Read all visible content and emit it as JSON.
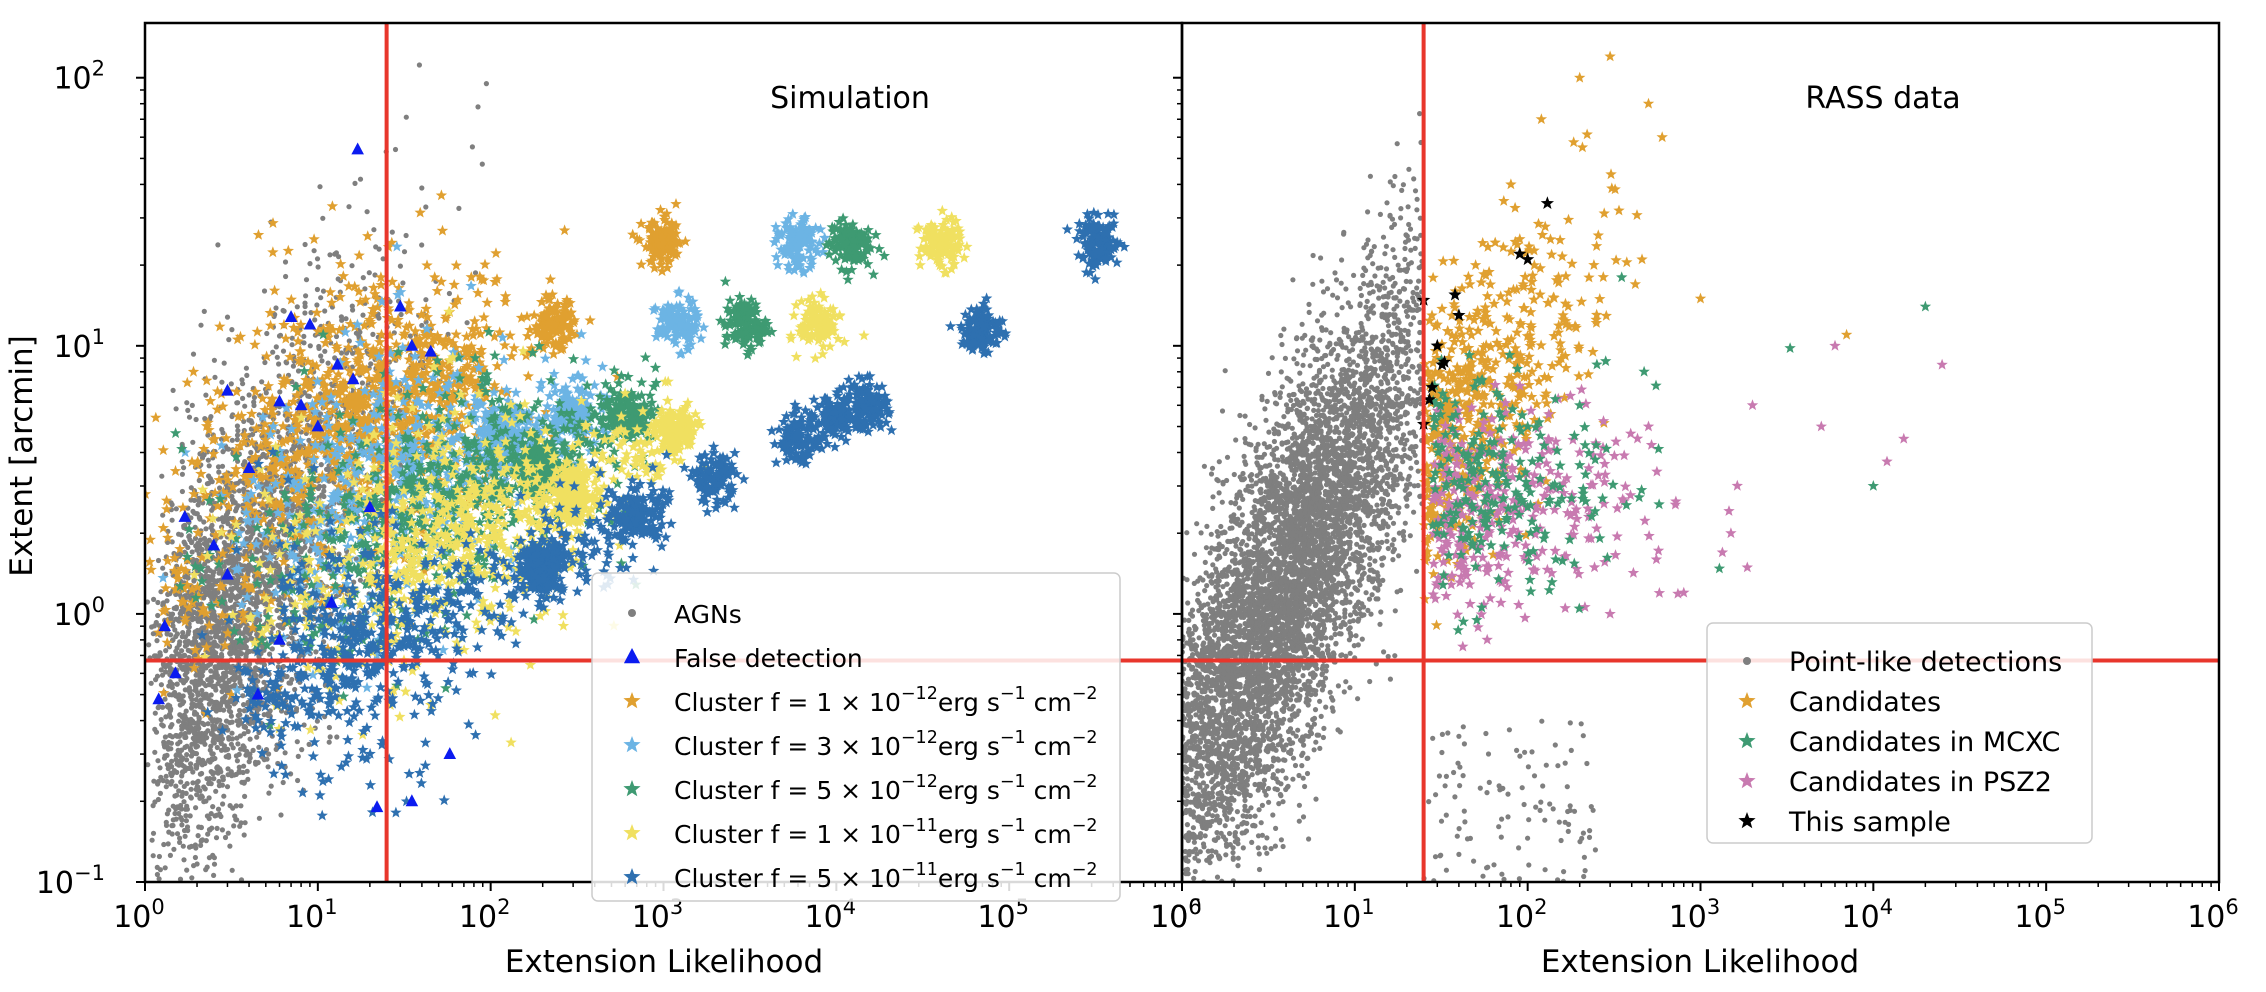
{
  "figure": {
    "ylabel": "Extent [arcmin]",
    "cut_lines": {
      "extension_likelihood": 25,
      "extent_arcmin": 0.67,
      "color": "#e8362c"
    }
  },
  "chart_data": [
    {
      "type": "scatter",
      "title": "Simulation",
      "xlabel": "Extension Likelihood",
      "ylabel": "Extent [arcmin]",
      "xscale": "log",
      "yscale": "log",
      "xlim": [
        1,
        1000000
      ],
      "ylim": [
        0.1,
        160
      ],
      "x_ticks": [
        1,
        10,
        100,
        1000,
        10000,
        100000,
        1000000
      ],
      "x_tick_labels": [
        "10^0",
        "10^1",
        "10^2",
        "10^3",
        "10^4",
        "10^5",
        "10^6"
      ],
      "y_ticks": [
        0.1,
        1,
        10,
        100
      ],
      "y_tick_labels": [
        "10^-1",
        "10^0",
        "10^1",
        "10^2"
      ],
      "grid": false,
      "legend_position": "lower-right",
      "series": [
        {
          "name": "AGNs",
          "marker": "circle",
          "color": "#7f7f7f",
          "description_points": [
            [
              1.2,
              0.4
            ],
            [
              1.5,
              0.7
            ],
            [
              2,
              1.2
            ],
            [
              3,
              2
            ],
            [
              4,
              3
            ],
            [
              6,
              5
            ],
            [
              8,
              8
            ],
            [
              10,
              12
            ],
            [
              15,
              20
            ],
            [
              20,
              40
            ],
            [
              30,
              70
            ],
            [
              50,
              140
            ],
            [
              2,
              0.15
            ],
            [
              5,
              0.2
            ],
            [
              10,
              0.3
            ],
            [
              40,
              0.15
            ],
            [
              100,
              0.12
            ],
            [
              20,
              1
            ],
            [
              15,
              0.5
            ]
          ]
        },
        {
          "name": "False detection",
          "marker": "triangle",
          "color": "#0b1bf0",
          "points": [
            [
              17,
              54
            ],
            [
              7,
              12.8
            ],
            [
              9,
              12
            ],
            [
              30,
              14
            ],
            [
              35,
              10
            ],
            [
              45,
              9.5
            ],
            [
              3,
              6.8
            ],
            [
              6,
              6.2
            ],
            [
              8,
              6
            ],
            [
              13,
              8.5
            ],
            [
              16,
              7.5
            ],
            [
              10,
              5
            ],
            [
              4,
              3.5
            ],
            [
              2.5,
              1.8
            ],
            [
              1.7,
              2.3
            ],
            [
              3,
              1.4
            ],
            [
              1.3,
              0.9
            ],
            [
              1.5,
              0.6
            ],
            [
              1.2,
              0.48
            ],
            [
              4.5,
              0.5
            ],
            [
              6,
              0.8
            ],
            [
              22,
              0.19
            ],
            [
              35,
              0.2
            ],
            [
              58,
              0.3
            ],
            [
              12,
              1.1
            ],
            [
              20,
              2.5
            ]
          ]
        },
        {
          "name": "Cluster f = 1×10^-12 erg s^-1 cm^-2",
          "marker": "star",
          "color": "#e0a030",
          "centers": [
            [
              15,
              5
            ],
            [
              30,
              6.5
            ],
            [
              60,
              8
            ],
            [
              230,
              12
            ],
            [
              1000,
              24
            ],
            [
              5,
              3
            ],
            [
              2,
              1.5
            ]
          ]
        },
        {
          "name": "Cluster f = 3×10^-12 erg s^-1 cm^-2",
          "marker": "star",
          "color": "#6cb4e4",
          "centers": [
            [
              40,
              3.5
            ],
            [
              120,
              4.5
            ],
            [
              300,
              5.5
            ],
            [
              1200,
              12
            ],
            [
              6000,
              24
            ],
            [
              10,
              2
            ]
          ]
        },
        {
          "name": "Cluster f = 5×10^-12 erg s^-1 cm^-2",
          "marker": "star",
          "color": "#3e9a72",
          "centers": [
            [
              60,
              2.8
            ],
            [
              200,
              3.5
            ],
            [
              600,
              5.5
            ],
            [
              3000,
              12
            ],
            [
              12000,
              24
            ],
            [
              8,
              1.4
            ]
          ]
        },
        {
          "name": "Cluster f = 1×10^-11 erg s^-1 cm^-2",
          "marker": "star",
          "color": "#f0e060",
          "centers": [
            [
              80,
              2
            ],
            [
              300,
              2.8
            ],
            [
              1200,
              4.8
            ],
            [
              8000,
              12
            ],
            [
              40000,
              24
            ],
            [
              12,
              1.3
            ]
          ]
        },
        {
          "name": "Cluster f = 5×10^-11 erg s^-1 cm^-2",
          "marker": "star",
          "color": "#2e70b0",
          "centers": [
            [
              15,
              0.7
            ],
            [
              200,
              1.5
            ],
            [
              700,
              2.3
            ],
            [
              2000,
              3.2
            ],
            [
              6000,
              4.5
            ],
            [
              10000,
              5.3
            ],
            [
              15000,
              6
            ],
            [
              70000,
              11.5
            ],
            [
              330000,
              24
            ]
          ]
        }
      ]
    },
    {
      "type": "scatter",
      "title": "RASS data",
      "xlabel": "Extension Likelihood",
      "xscale": "log",
      "yscale": "log",
      "xlim": [
        1,
        1000000
      ],
      "ylim": [
        0.1,
        160
      ],
      "x_ticks": [
        1,
        10,
        100,
        1000,
        10000,
        100000,
        1000000
      ],
      "x_tick_labels": [
        "10^0",
        "10^1",
        "10^2",
        "10^3",
        "10^4",
        "10^5",
        "10^6"
      ],
      "grid": false,
      "legend_position": "lower-right",
      "series": [
        {
          "name": "Point-like detections",
          "marker": "circle",
          "color": "#7f7f7f",
          "description_points": [
            [
              1.2,
              0.8
            ],
            [
              2,
              1.2
            ],
            [
              4,
              2
            ],
            [
              8,
              4
            ],
            [
              15,
              8
            ],
            [
              20,
              20
            ],
            [
              25,
              40
            ],
            [
              18,
              70
            ],
            [
              1.5,
              0.3
            ],
            [
              3,
              0.2
            ],
            [
              30,
              0.15
            ],
            [
              60,
              0.3
            ],
            [
              120,
              0.5
            ]
          ]
        },
        {
          "name": "Candidates",
          "marker": "star",
          "color": "#e0a030",
          "points": [
            [
              30,
              12
            ],
            [
              50,
              20
            ],
            [
              80,
              40
            ],
            [
              120,
              70
            ],
            [
              200,
              100
            ],
            [
              300,
              120
            ],
            [
              500,
              80
            ],
            [
              600,
              60
            ],
            [
              1000,
              15
            ],
            [
              7000,
              11
            ],
            [
              40,
              8
            ],
            [
              60,
              5
            ],
            [
              35,
              6
            ],
            [
              90,
              25
            ]
          ]
        },
        {
          "name": "Candidates in MCXC",
          "marker": "star",
          "color": "#3e9a72",
          "points": [
            [
              40,
              3
            ],
            [
              60,
              4
            ],
            [
              100,
              5
            ],
            [
              200,
              6
            ],
            [
              350,
              18
            ],
            [
              3300,
              9.8
            ],
            [
              20000,
              14
            ],
            [
              10000,
              3
            ],
            [
              100,
              2.5
            ],
            [
              50,
              1.5
            ],
            [
              30,
              2
            ]
          ]
        },
        {
          "name": "Candidates in PSZ2",
          "marker": "star",
          "color": "#c87ab0",
          "points": [
            [
              40,
              1.5
            ],
            [
              60,
              2
            ],
            [
              100,
              3
            ],
            [
              200,
              4
            ],
            [
              500,
              5
            ],
            [
              2000,
              6
            ],
            [
              6000,
              10
            ],
            [
              25000,
              8.5
            ],
            [
              15000,
              4.5
            ],
            [
              12000,
              3.7
            ],
            [
              5000,
              5
            ],
            [
              1500,
              2
            ],
            [
              800,
              1.2
            ],
            [
              300,
              1
            ],
            [
              70,
              1.1
            ]
          ]
        },
        {
          "name": "This sample",
          "marker": "star",
          "color": "#000000",
          "points": [
            [
              25,
              14.8
            ],
            [
              38,
              15.5
            ],
            [
              40,
              13
            ],
            [
              90,
              22
            ],
            [
              100,
              21
            ],
            [
              130,
              34
            ],
            [
              30,
              10
            ],
            [
              32,
              8.5
            ],
            [
              28,
              7
            ],
            [
              27,
              6.3
            ],
            [
              25,
              5.1
            ],
            [
              33,
              8.7
            ]
          ]
        }
      ]
    }
  ],
  "panels_text": {
    "left_title": "Simulation",
    "right_title": "RASS data",
    "xlabel": "Extension Likelihood",
    "ylabel": "Extent [arcmin]"
  },
  "legend_left": [
    {
      "label": "AGNs",
      "marker": "circle",
      "color": "#7f7f7f",
      "exp": ""
    },
    {
      "label": "False detection",
      "marker": "triangle",
      "color": "#0b1bf0",
      "exp": ""
    },
    {
      "label": "Cluster f  =  1 × 10",
      "exp": "−12",
      "suffix": "erg s",
      "suffix_exp": "−1",
      "suffix2": " cm",
      "suffix2_exp": "−2",
      "marker": "star",
      "color": "#e0a030"
    },
    {
      "label": "Cluster f  =  3 × 10",
      "exp": "−12",
      "suffix": "erg s",
      "suffix_exp": "−1",
      "suffix2": " cm",
      "suffix2_exp": "−2",
      "marker": "star",
      "color": "#6cb4e4"
    },
    {
      "label": "Cluster f  =  5 × 10",
      "exp": "−12",
      "suffix": "erg s",
      "suffix_exp": "−1",
      "suffix2": " cm",
      "suffix2_exp": "−2",
      "marker": "star",
      "color": "#3e9a72"
    },
    {
      "label": "Cluster f  =  1 × 10",
      "exp": "−11",
      "suffix": "erg s",
      "suffix_exp": "−1",
      "suffix2": " cm",
      "suffix2_exp": "−2",
      "marker": "star",
      "color": "#f0e060"
    },
    {
      "label": "Cluster f  =  5 × 10",
      "exp": "−11",
      "suffix": "erg s",
      "suffix_exp": "−1",
      "suffix2": " cm",
      "suffix2_exp": "−2",
      "marker": "star",
      "color": "#2e70b0"
    }
  ],
  "legend_right": [
    {
      "label": "Point-like detections",
      "marker": "circle",
      "color": "#7f7f7f"
    },
    {
      "label": "Candidates",
      "marker": "star",
      "color": "#e0a030"
    },
    {
      "label": "Candidates in MCXC",
      "marker": "star",
      "color": "#3e9a72"
    },
    {
      "label": "Candidates in PSZ2",
      "marker": "star",
      "color": "#c87ab0"
    },
    {
      "label": "This sample",
      "marker": "star",
      "color": "#000000"
    }
  ],
  "x_tick_bases": [
    "10",
    "10",
    "10",
    "10",
    "10",
    "10",
    "10"
  ],
  "x_tick_exps": [
    "0",
    "1",
    "2",
    "3",
    "4",
    "5",
    "6"
  ],
  "y_tick_bases": [
    "10",
    "10",
    "10",
    "10"
  ],
  "y_tick_exps": [
    "−1",
    "0",
    "1",
    "2"
  ]
}
